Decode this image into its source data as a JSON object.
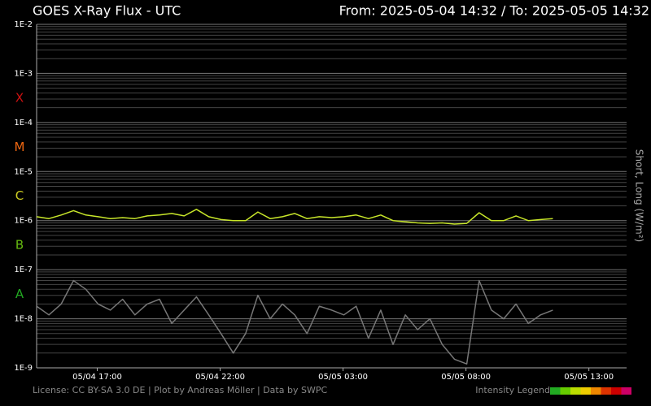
{
  "chart_data": {
    "type": "line",
    "title": "GOES X-Ray Flux - UTC",
    "subtitle": "From: 2025-05-04 14:32  /  To: 2025-05-05 14:32",
    "y_label": "Short, Long (W/m²)",
    "footer": "License: CC BY-SA 3.0 DE | Plot by Andreas Möller | Data by SWPC",
    "intensity_legend": {
      "label": "Intensity Legend",
      "colors": [
        "#22aa22",
        "#66cc00",
        "#bbdd00",
        "#eecc00",
        "#ee8800",
        "#dd3300",
        "#cc0000",
        "#cc0066"
      ]
    },
    "y_log": true,
    "grid": true,
    "ylim": [
      1e-09,
      0.01
    ],
    "yticks": [
      {
        "value": 1e-09,
        "label": "1E-9"
      },
      {
        "value": 1e-08,
        "label": "1E-8"
      },
      {
        "value": 1e-07,
        "label": "1E-7"
      },
      {
        "value": 1e-06,
        "label": "1E-6"
      },
      {
        "value": 1e-05,
        "label": "1E-5"
      },
      {
        "value": 0.0001,
        "label": "1E-4"
      },
      {
        "value": 0.001,
        "label": "1E-3"
      },
      {
        "value": 0.01,
        "label": "1E-2"
      }
    ],
    "class_labels": [
      {
        "label": "X",
        "value": 0.0001,
        "color": "#cc1111"
      },
      {
        "label": "M",
        "value": 1e-05,
        "color": "#ee6611"
      },
      {
        "label": "C",
        "value": 1e-06,
        "color": "#cccc22"
      },
      {
        "label": "B",
        "value": 1e-07,
        "color": "#66bb11"
      },
      {
        "label": "A",
        "value": 1e-08,
        "color": "#22aa22"
      }
    ],
    "xlim": [
      "05/04 14:32",
      "05/05 14:32"
    ],
    "xticks": [
      "05/04 17:00",
      "05/04 22:00",
      "05/05 03:00",
      "05/05 08:00",
      "05/05 13:00"
    ],
    "x": [
      "05/04 14:32",
      "05/04 15:02",
      "05/04 15:32",
      "05/04 16:02",
      "05/04 16:32",
      "05/04 17:02",
      "05/04 17:32",
      "05/04 18:02",
      "05/04 18:32",
      "05/04 19:02",
      "05/04 19:32",
      "05/04 20:02",
      "05/04 20:32",
      "05/04 21:02",
      "05/04 21:32",
      "05/04 22:02",
      "05/04 22:32",
      "05/04 23:02",
      "05/04 23:32",
      "05/05 00:02",
      "05/05 00:32",
      "05/05 01:02",
      "05/05 01:32",
      "05/05 02:02",
      "05/05 02:32",
      "05/05 03:02",
      "05/05 03:32",
      "05/05 04:02",
      "05/05 04:32",
      "05/05 05:02",
      "05/05 05:32",
      "05/05 06:02",
      "05/05 06:32",
      "05/05 07:02",
      "05/05 07:32",
      "05/05 08:02",
      "05/05 08:32",
      "05/05 09:02",
      "05/05 09:32",
      "05/05 10:02",
      "05/05 10:32",
      "05/05 11:02",
      "05/05 11:32"
    ],
    "series": [
      {
        "color": "#777777",
        "values": [
          1.8e-08,
          1.2e-08,
          2e-08,
          6e-08,
          4e-08,
          2e-08,
          1.5e-08,
          2.5e-08,
          1.2e-08,
          2e-08,
          2.5e-08,
          8e-09,
          1.5e-08,
          2.8e-08,
          1.2e-08,
          5e-09,
          2e-09,
          5e-09,
          3e-08,
          1e-08,
          2e-08,
          1.2e-08,
          5e-09,
          1.8e-08,
          1.5e-08,
          1.2e-08,
          1.8e-08,
          4e-09,
          1.5e-08,
          3e-09,
          1.2e-08,
          6e-09,
          1e-08,
          3e-09,
          1.5e-09,
          1.2e-09,
          6e-08,
          1.5e-08,
          1e-08,
          2e-08,
          8e-09,
          1.2e-08,
          1.5e-08
        ]
      },
      {
        "color": "#c8e62a",
        "values": [
          1.2e-06,
          1.1e-06,
          1.3e-06,
          1.6e-06,
          1.3e-06,
          1.2e-06,
          1.1e-06,
          1.15e-06,
          1.1e-06,
          1.25e-06,
          1.3e-06,
          1.4e-06,
          1.25e-06,
          1.7e-06,
          1.2e-06,
          1.05e-06,
          1e-06,
          1e-06,
          1.5e-06,
          1.1e-06,
          1.2e-06,
          1.4e-06,
          1.1e-06,
          1.2e-06,
          1.15e-06,
          1.2e-06,
          1.3e-06,
          1.1e-06,
          1.3e-06,
          1e-06,
          9.5e-07,
          9e-07,
          8.8e-07,
          9e-07,
          8.5e-07,
          8.8e-07,
          1.45e-06,
          1e-06,
          1e-06,
          1.25e-06,
          1e-06,
          1.05e-06,
          1.1e-06
        ]
      }
    ]
  }
}
